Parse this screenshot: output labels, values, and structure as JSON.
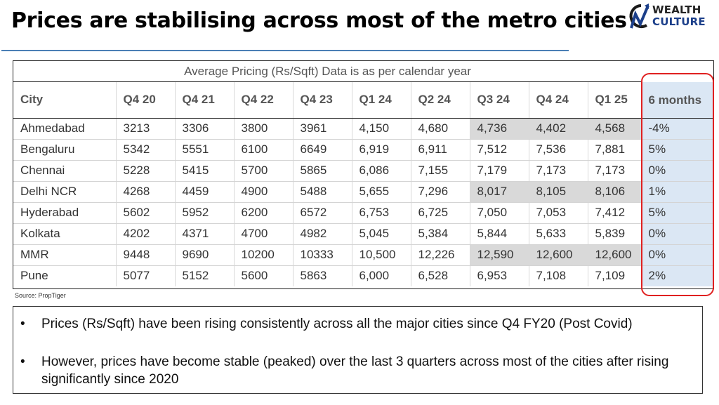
{
  "header": {
    "title": "Prices are stabilising across most of the metro cities",
    "logo_line1": "WEALTH",
    "logo_line2": "CULTURE"
  },
  "table": {
    "caption": "Average Pricing (Rs/Sqft) Data is as per calendar year",
    "columns": [
      "City",
      "Q4 20",
      "Q4 21",
      "Q4 22",
      "Q4 23",
      "Q1 24",
      "Q2 24",
      "Q3 24",
      "Q4 24",
      "Q1 25",
      "6 months"
    ],
    "rows": [
      {
        "cells": [
          "Ahmedabad",
          "3213",
          "3306",
          "3800",
          "3961",
          "4,150",
          "4,680",
          "4,736",
          "4,402",
          "4,568",
          "-4%"
        ],
        "highlight": [
          7,
          8,
          9
        ]
      },
      {
        "cells": [
          "Bengaluru",
          "5342",
          "5551",
          "6100",
          "6649",
          "6,919",
          "6,911",
          "7,512",
          "7,536",
          "7,881",
          "5%"
        ],
        "highlight": []
      },
      {
        "cells": [
          "Chennai",
          "5228",
          "5415",
          "5700",
          "5865",
          "6,086",
          "7,155",
          "7,179",
          "7,173",
          "7,173",
          "0%"
        ],
        "highlight": []
      },
      {
        "cells": [
          "Delhi NCR",
          "4268",
          "4459",
          "4900",
          "5488",
          "5,655",
          "7,296",
          "8,017",
          "8,105",
          "8,106",
          "1%"
        ],
        "highlight": [
          7,
          8,
          9
        ]
      },
      {
        "cells": [
          "Hyderabad",
          "5602",
          "5952",
          "6200",
          "6572",
          "6,753",
          "6,725",
          "7,050",
          "7,053",
          "7,412",
          "5%"
        ],
        "highlight": []
      },
      {
        "cells": [
          "Kolkata",
          "4202",
          "4371",
          "4700",
          "4982",
          "5,045",
          "5,384",
          "5,844",
          "5,633",
          "5,839",
          "0%"
        ],
        "highlight": []
      },
      {
        "cells": [
          "MMR",
          "9448",
          "9690",
          "10200",
          "10333",
          "10,500",
          "12,226",
          "12,590",
          "12,600",
          "12,600",
          "0%"
        ],
        "highlight": [
          7,
          8,
          9
        ]
      },
      {
        "cells": [
          "Pune",
          "5077",
          "5152",
          "5600",
          "5863",
          "6,000",
          "6,528",
          "6,953",
          "7,108",
          "7,109",
          "2%"
        ],
        "highlight": []
      }
    ]
  },
  "source": "Source: PropTiger",
  "notes": [
    "Prices (Rs/Sqft) have been rising consistently across all the major cities since Q4 FY20 (Post Covid)",
    "However, prices have become stable (peaked) over the last 3 quarters across most of the cities after rising significantly since 2020"
  ],
  "colors": {
    "title_rule": "#4a7fb5",
    "highlight_cell": "#d9d9d9",
    "months_column": "#dbe7f4",
    "ring": "#e02020",
    "logo_accent": "#1c3f8a"
  },
  "icons": {
    "logo": "wealth-culture-logo-icon"
  }
}
